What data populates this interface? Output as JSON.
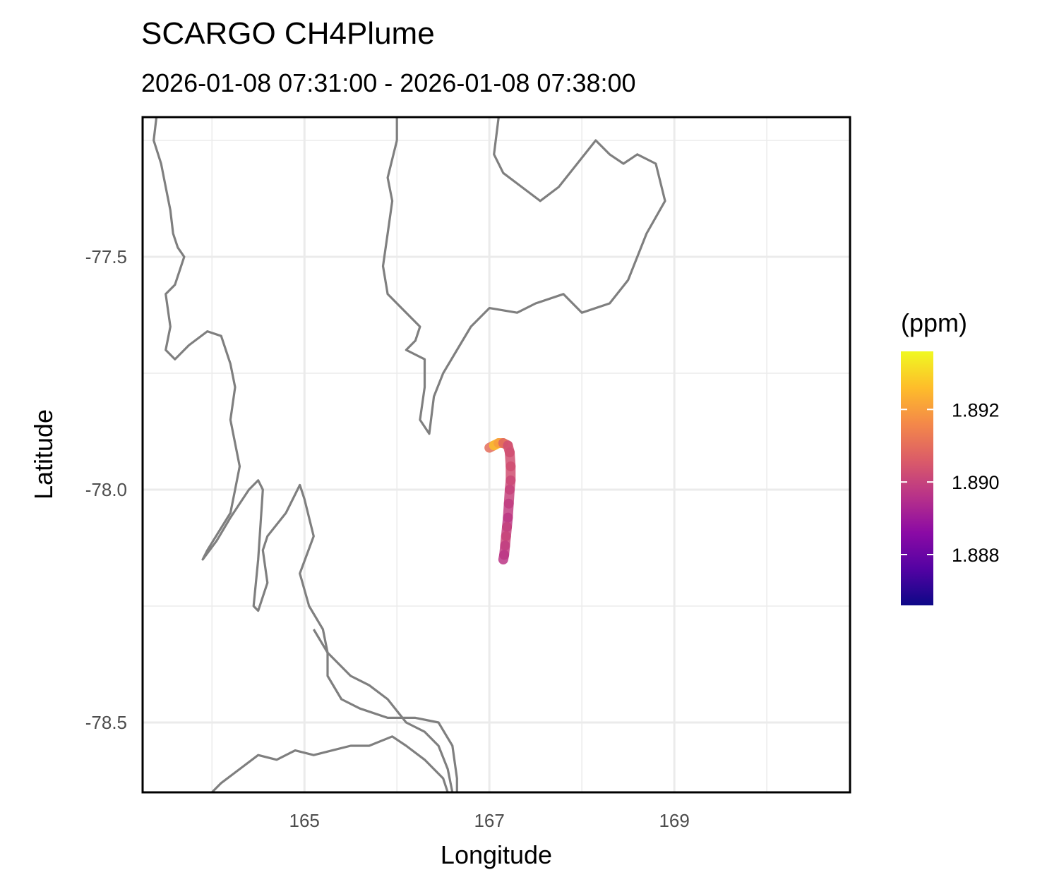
{
  "chart_data": {
    "type": "line",
    "title": "SCARGO CH4Plume",
    "subtitle": "2026-01-08 07:31:00 - 2026-01-08 07:38:00",
    "xlabel": "Longitude",
    "ylabel": "Latitude",
    "xlim": [
      163.25,
      170.9
    ],
    "ylim": [
      -78.65,
      -77.2
    ],
    "x_ticks": [
      165,
      167,
      169
    ],
    "x_tick_labels": [
      "165",
      "167",
      "169"
    ],
    "x_minor_grid": [
      164,
      166,
      168,
      170
    ],
    "y_ticks": [
      -77.5,
      -78.0,
      -78.5
    ],
    "y_tick_labels": [
      "-77.5",
      "-78.0",
      "-78.5"
    ],
    "y_minor_grid": [
      -77.25,
      -77.75,
      -78.25
    ],
    "grid": true,
    "legend": {
      "title": "(ppm)",
      "placement": "right",
      "palette": "plasma",
      "range": [
        1.8866,
        1.8936
      ],
      "breaks": [
        1.888,
        1.89,
        1.892
      ],
      "break_labels": [
        "1.888",
        "1.890",
        "1.892"
      ],
      "colors": [
        "#0d0887",
        "#5302a3",
        "#8b0aa5",
        "#b83289",
        "#db5c68",
        "#f48849",
        "#febd2a",
        "#f0f921"
      ]
    },
    "coastline_color": "#7f7f7f",
    "coastlines": [
      [
        [
          163.4,
          -77.2
        ],
        [
          163.37,
          -77.25
        ],
        [
          163.45,
          -77.3
        ],
        [
          163.5,
          -77.35
        ],
        [
          163.55,
          -77.4
        ],
        [
          163.58,
          -77.45
        ],
        [
          163.63,
          -77.48
        ],
        [
          163.7,
          -77.5
        ],
        [
          163.6,
          -77.56
        ],
        [
          163.5,
          -77.58
        ],
        [
          163.55,
          -77.65
        ],
        [
          163.5,
          -77.7
        ],
        [
          163.6,
          -77.72
        ],
        [
          163.75,
          -77.69
        ],
        [
          163.95,
          -77.66
        ],
        [
          164.1,
          -77.67
        ],
        [
          164.2,
          -77.73
        ],
        [
          164.25,
          -77.78
        ],
        [
          164.2,
          -77.85
        ],
        [
          164.3,
          -77.95
        ],
        [
          164.25,
          -78.0
        ],
        [
          164.2,
          -78.05
        ],
        [
          163.95,
          -78.13
        ],
        [
          163.9,
          -78.15
        ],
        [
          164.05,
          -78.11
        ],
        [
          164.2,
          -78.06
        ],
        [
          164.3,
          -78.03
        ],
        [
          164.4,
          -78.0
        ],
        [
          164.5,
          -77.98
        ],
        [
          164.55,
          -78.0
        ],
        [
          164.5,
          -78.15
        ],
        [
          164.45,
          -78.25
        ],
        [
          164.5,
          -78.26
        ],
        [
          164.6,
          -78.2
        ],
        [
          164.55,
          -78.13
        ],
        [
          164.6,
          -78.1
        ],
        [
          164.8,
          -78.05
        ],
        [
          164.95,
          -77.99
        ],
        [
          165.0,
          -78.02
        ],
        [
          165.1,
          -78.1
        ],
        [
          164.95,
          -78.18
        ],
        [
          165.05,
          -78.25
        ],
        [
          165.2,
          -78.3
        ],
        [
          165.25,
          -78.35
        ],
        [
          165.25,
          -78.4
        ],
        [
          165.4,
          -78.45
        ],
        [
          165.6,
          -78.47
        ],
        [
          165.9,
          -78.49
        ],
        [
          166.2,
          -78.49
        ],
        [
          166.45,
          -78.5
        ],
        [
          166.6,
          -78.55
        ],
        [
          166.65,
          -78.62
        ],
        [
          166.65,
          -78.65
        ]
      ],
      [
        [
          166.0,
          -77.25
        ],
        [
          165.9,
          -77.33
        ],
        [
          165.95,
          -77.38
        ],
        [
          165.9,
          -77.45
        ],
        [
          165.85,
          -77.52
        ],
        [
          165.9,
          -77.58
        ],
        [
          166.0,
          -77.6
        ],
        [
          166.1,
          -77.62
        ],
        [
          166.25,
          -77.65
        ],
        [
          166.2,
          -77.68
        ],
        [
          166.1,
          -77.7
        ],
        [
          166.3,
          -77.72
        ],
        [
          166.3,
          -77.78
        ],
        [
          166.25,
          -77.85
        ],
        [
          166.35,
          -77.88
        ],
        [
          166.4,
          -77.8
        ],
        [
          166.5,
          -77.75
        ],
        [
          166.65,
          -77.7
        ],
        [
          166.8,
          -77.65
        ],
        [
          167.0,
          -77.61
        ],
        [
          167.3,
          -77.62
        ],
        [
          167.5,
          -77.6
        ],
        [
          167.8,
          -77.58
        ],
        [
          168.0,
          -77.62
        ],
        [
          168.3,
          -77.6
        ],
        [
          168.5,
          -77.55
        ],
        [
          168.7,
          -77.45
        ],
        [
          168.9,
          -77.38
        ],
        [
          168.8,
          -77.3
        ],
        [
          168.6,
          -77.28
        ],
        [
          168.45,
          -77.3
        ],
        [
          168.3,
          -77.28
        ],
        [
          168.15,
          -77.25
        ],
        [
          167.95,
          -77.3
        ],
        [
          167.75,
          -77.35
        ],
        [
          167.55,
          -77.38
        ],
        [
          167.35,
          -77.35
        ],
        [
          167.15,
          -77.32
        ],
        [
          167.05,
          -77.28
        ],
        [
          167.1,
          -77.2
        ],
        [
          167.0,
          -77.15
        ],
        [
          166.85,
          -77.1
        ],
        [
          166.7,
          -77.05
        ],
        [
          166.5,
          -77.05
        ],
        [
          166.3,
          -77.1
        ],
        [
          166.15,
          -77.15
        ],
        [
          166.0,
          -77.2
        ],
        [
          166.0,
          -77.25
        ]
      ],
      [
        [
          165.1,
          -78.3
        ],
        [
          165.25,
          -78.35
        ],
        [
          165.5,
          -78.4
        ],
        [
          165.7,
          -78.42
        ],
        [
          165.9,
          -78.45
        ],
        [
          166.1,
          -78.5
        ],
        [
          166.3,
          -78.52
        ],
        [
          166.45,
          -78.55
        ],
        [
          166.55,
          -78.6
        ],
        [
          166.6,
          -78.65
        ]
      ],
      [
        [
          166.55,
          -78.65
        ],
        [
          166.5,
          -78.62
        ],
        [
          166.3,
          -78.58
        ],
        [
          166.1,
          -78.55
        ],
        [
          165.95,
          -78.53
        ],
        [
          165.7,
          -78.55
        ],
        [
          165.5,
          -78.55
        ],
        [
          165.3,
          -78.56
        ],
        [
          165.1,
          -78.57
        ],
        [
          164.9,
          -78.56
        ],
        [
          164.7,
          -78.58
        ],
        [
          164.5,
          -78.57
        ],
        [
          164.3,
          -78.6
        ],
        [
          164.1,
          -78.63
        ],
        [
          164.0,
          -78.65
        ]
      ]
    ],
    "track": {
      "lon": [
        167.0,
        167.05,
        167.1,
        167.15,
        167.2,
        167.22,
        167.23,
        167.23,
        167.22,
        167.21,
        167.2,
        167.19,
        167.18,
        167.17,
        167.16,
        167.15
      ],
      "lat": [
        -77.91,
        -77.905,
        -77.9,
        -77.9,
        -77.905,
        -77.92,
        -77.95,
        -77.98,
        -78.0,
        -78.03,
        -78.06,
        -78.08,
        -78.1,
        -78.12,
        -78.14,
        -78.15
      ],
      "ch4": [
        1.8895,
        1.8925,
        1.8928,
        1.8912,
        1.8904,
        1.8902,
        1.8904,
        1.8902,
        1.8901,
        1.8899,
        1.8898,
        1.8897,
        1.8902,
        1.8899,
        1.8898,
        1.8896
      ]
    }
  }
}
